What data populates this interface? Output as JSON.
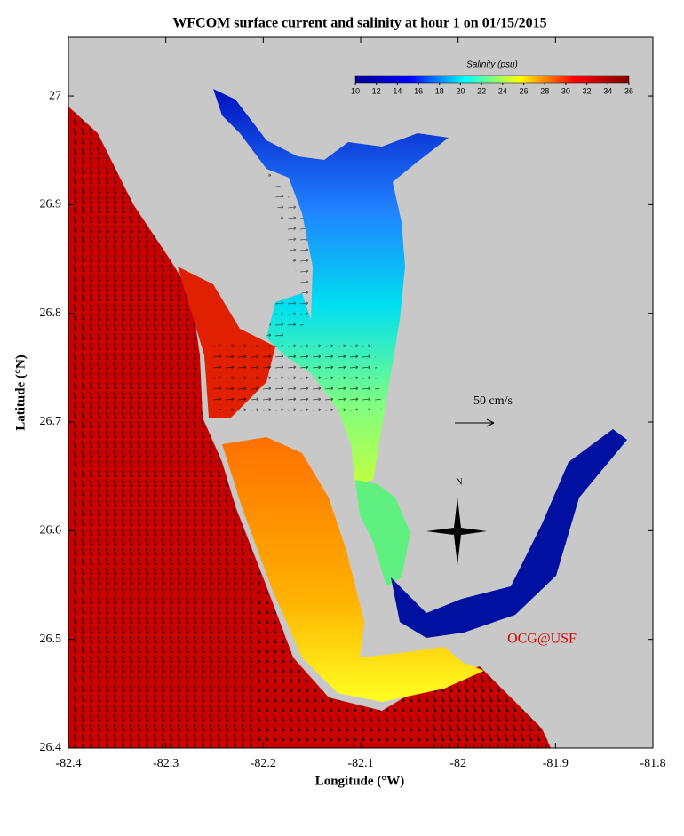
{
  "chart_data": {
    "type": "map",
    "title": "WFCOM surface current and salinity at hour 1 on 01/15/2015",
    "x_label": "Longitude (°W)",
    "y_label": "Latitude (°N)",
    "xlim": [
      -82.4,
      -81.8
    ],
    "xticks": [
      -82.4,
      -82.3,
      -82.2,
      -82.1,
      -82,
      -81.9,
      -81.8
    ],
    "ylim": [
      26.4,
      27.054
    ],
    "yticks": [
      26.4,
      26.5,
      26.6,
      26.7,
      26.8,
      26.9,
      27
    ],
    "colorbar": {
      "label": "Salinity (psu)",
      "range": [
        10,
        36
      ],
      "ticks": [
        10,
        12,
        14,
        16,
        18,
        20,
        22,
        24,
        26,
        28,
        30,
        32,
        34,
        36
      ],
      "colors": [
        "#00008f",
        "#0000ff",
        "#00ffff",
        "#ffff00",
        "#ff0000",
        "#800000"
      ]
    },
    "annotations": {
      "scale": "50 cm/s",
      "north": "N",
      "credit": "OCG@USF"
    }
  }
}
